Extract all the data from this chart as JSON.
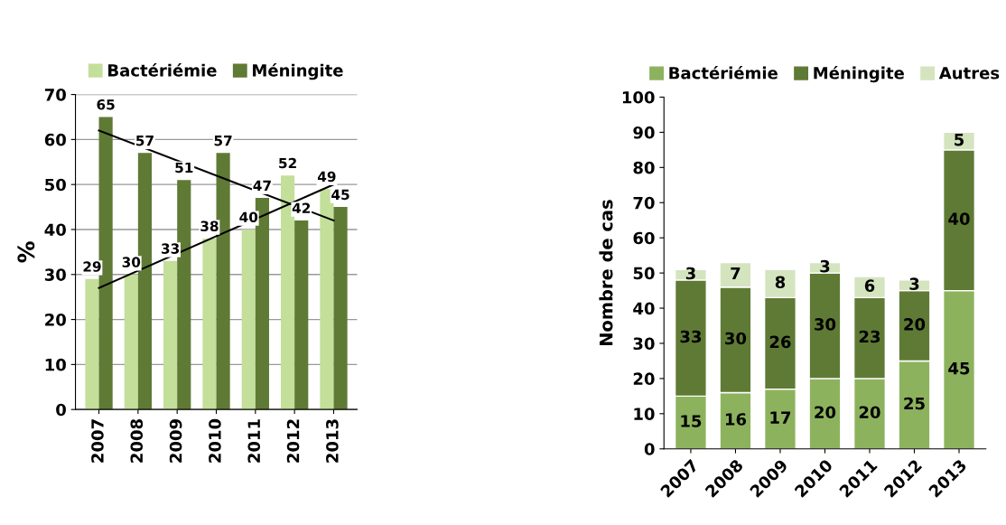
{
  "chart_data": [
    {
      "type": "bar",
      "ylabel": "%",
      "categories": [
        "2007",
        "2008",
        "2009",
        "2010",
        "2011",
        "2012",
        "2013"
      ],
      "ylim": [
        0,
        70
      ],
      "yticks": [
        0,
        10,
        20,
        30,
        40,
        50,
        60,
        70
      ],
      "grid": "y",
      "legend": "top",
      "series": [
        {
          "name": "Bactériémie",
          "color": "#c3df9a",
          "values": [
            29,
            30,
            33,
            38,
            40,
            52,
            49
          ],
          "value_labels": [
            "29",
            "30",
            "33",
            "38",
            "40",
            "52",
            "49"
          ]
        },
        {
          "name": "Méningite",
          "color": "#5f7a35",
          "values": [
            65,
            57,
            51,
            57,
            47,
            42,
            45
          ],
          "value_labels": [
            "65",
            "57",
            "51",
            "57",
            "47",
            "42",
            "45"
          ]
        },
        {
          "type": "line",
          "color": "#000000",
          "values": [
            27,
            null,
            null,
            null,
            null,
            null,
            50
          ]
        },
        {
          "type": "line",
          "color": "#000000",
          "values": [
            62,
            null,
            null,
            null,
            null,
            null,
            42
          ]
        }
      ]
    },
    {
      "type": "bar",
      "ylabel": "Nombre de cas",
      "categories": [
        "2007",
        "2008",
        "2009",
        "2010",
        "2011",
        "2012",
        "2013"
      ],
      "ylim": [
        0,
        100
      ],
      "yticks": [
        0,
        10,
        20,
        30,
        40,
        50,
        60,
        70,
        80,
        90,
        100
      ],
      "grid": false,
      "legend": "top",
      "stacked": true,
      "data_labels": true,
      "series": [
        {
          "name": "Bactériémie",
          "color": "#8db25e",
          "values": [
            15,
            16,
            17,
            20,
            20,
            25,
            45
          ]
        },
        {
          "name": "Méningite",
          "color": "#5f7a35",
          "values": [
            33,
            30,
            26,
            30,
            23,
            20,
            40
          ]
        },
        {
          "name": "Autres",
          "color": "#d4e4bf",
          "values": [
            3,
            7,
            8,
            3,
            6,
            3,
            5
          ]
        }
      ]
    }
  ]
}
